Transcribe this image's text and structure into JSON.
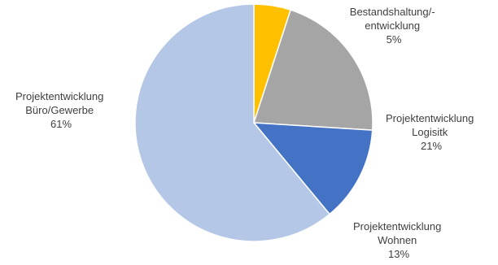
{
  "chart_data": {
    "type": "pie",
    "title": "",
    "slices": [
      {
        "label_lines": [
          "Bestandshaltung/-",
          "entwicklung"
        ],
        "value": 5,
        "value_label": "5%",
        "color": "#FFC000"
      },
      {
        "label_lines": [
          "Projektentwicklung",
          "Logisitk"
        ],
        "value": 21,
        "value_label": "21%",
        "color": "#A5A5A5"
      },
      {
        "label_lines": [
          "Projektentwicklung",
          "Wohnen"
        ],
        "value": 13,
        "value_label": "13%",
        "color": "#4472C4"
      },
      {
        "label_lines": [
          "Projektentwicklung",
          "Büro/Gewerbe"
        ],
        "value": 61,
        "value_label": "61%",
        "color": "#B4C7E7"
      }
    ],
    "start_angle_deg": 0,
    "direction": "clockwise",
    "legend": "none",
    "label_text_color": "#404040"
  }
}
